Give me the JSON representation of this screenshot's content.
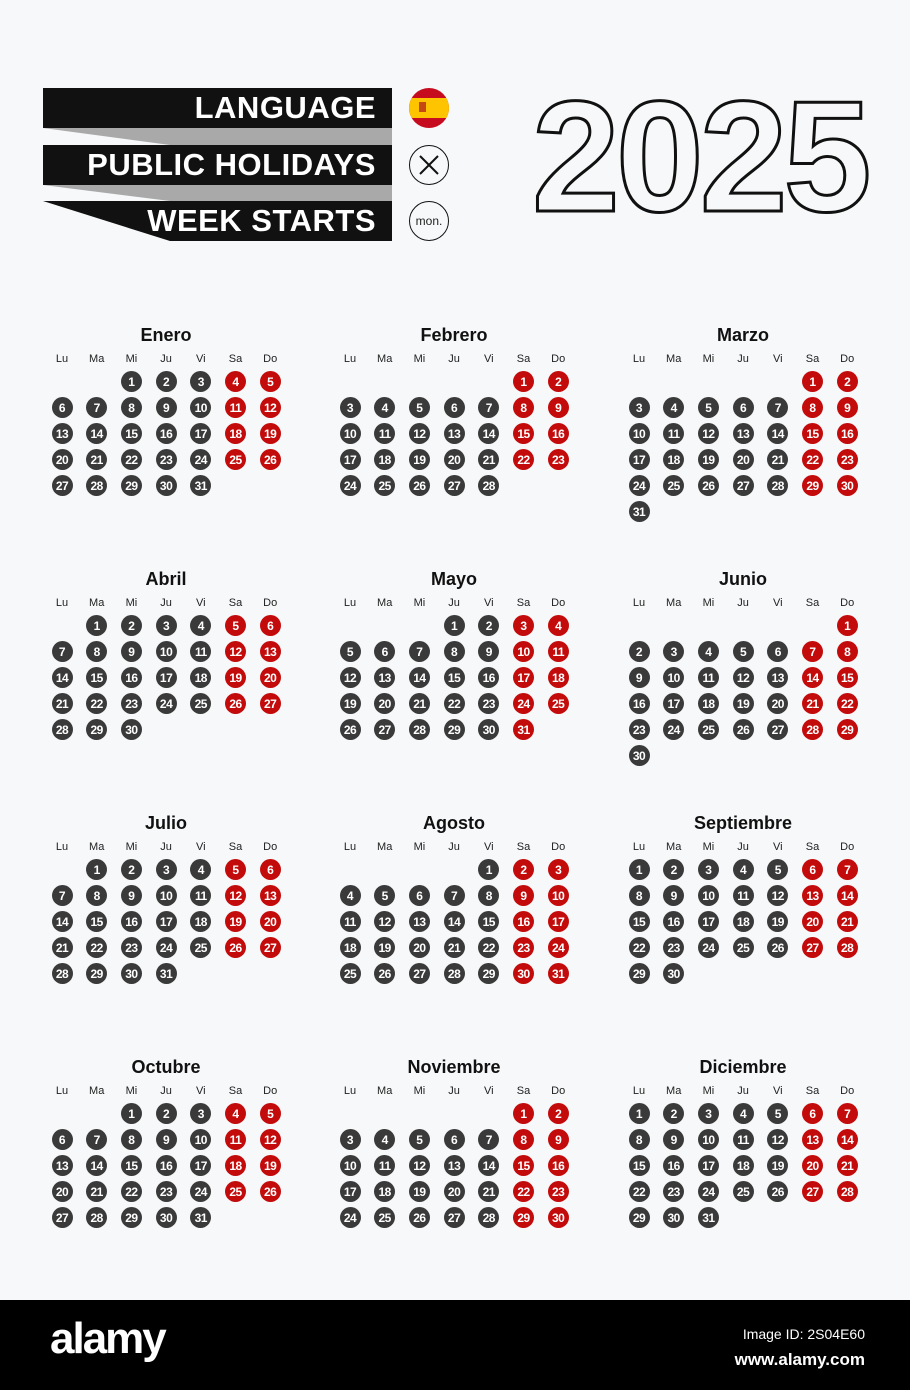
{
  "header": {
    "language_label": "LANGUAGE",
    "holidays_label": "PUBLIC HOLIDAYS",
    "week_starts_label": "WEEK STARTS",
    "language_icon": "spain-flag-icon",
    "holidays_icon": "x-circle-icon",
    "week_start_value": "mon."
  },
  "year": "2025",
  "weekdays": [
    "Lu",
    "Ma",
    "Mi",
    "Ju",
    "Vi",
    "Sa",
    "Do"
  ],
  "colors": {
    "weekday_day": "#3a3a3a",
    "weekend_day": "#c30b0b",
    "accent_dark": "#111111"
  },
  "months": [
    {
      "name": "Enero",
      "first_weekday": 2,
      "days": 31
    },
    {
      "name": "Febrero",
      "first_weekday": 5,
      "days": 28
    },
    {
      "name": "Marzo",
      "first_weekday": 5,
      "days": 31
    },
    {
      "name": "Abril",
      "first_weekday": 1,
      "days": 30
    },
    {
      "name": "Mayo",
      "first_weekday": 3,
      "days": 31
    },
    {
      "name": "Junio",
      "first_weekday": 6,
      "days": 30
    },
    {
      "name": "Julio",
      "first_weekday": 1,
      "days": 31
    },
    {
      "name": "Agosto",
      "first_weekday": 4,
      "days": 31
    },
    {
      "name": "Septiembre",
      "first_weekday": 0,
      "days": 30
    },
    {
      "name": "Octubre",
      "first_weekday": 2,
      "days": 31
    },
    {
      "name": "Noviembre",
      "first_weekday": 5,
      "days": 30
    },
    {
      "name": "Diciembre",
      "first_weekday": 0,
      "days": 31
    }
  ],
  "footer": {
    "logo": "alamy",
    "image_id": "Image ID: 2S04E60",
    "site": "www.alamy.com"
  }
}
